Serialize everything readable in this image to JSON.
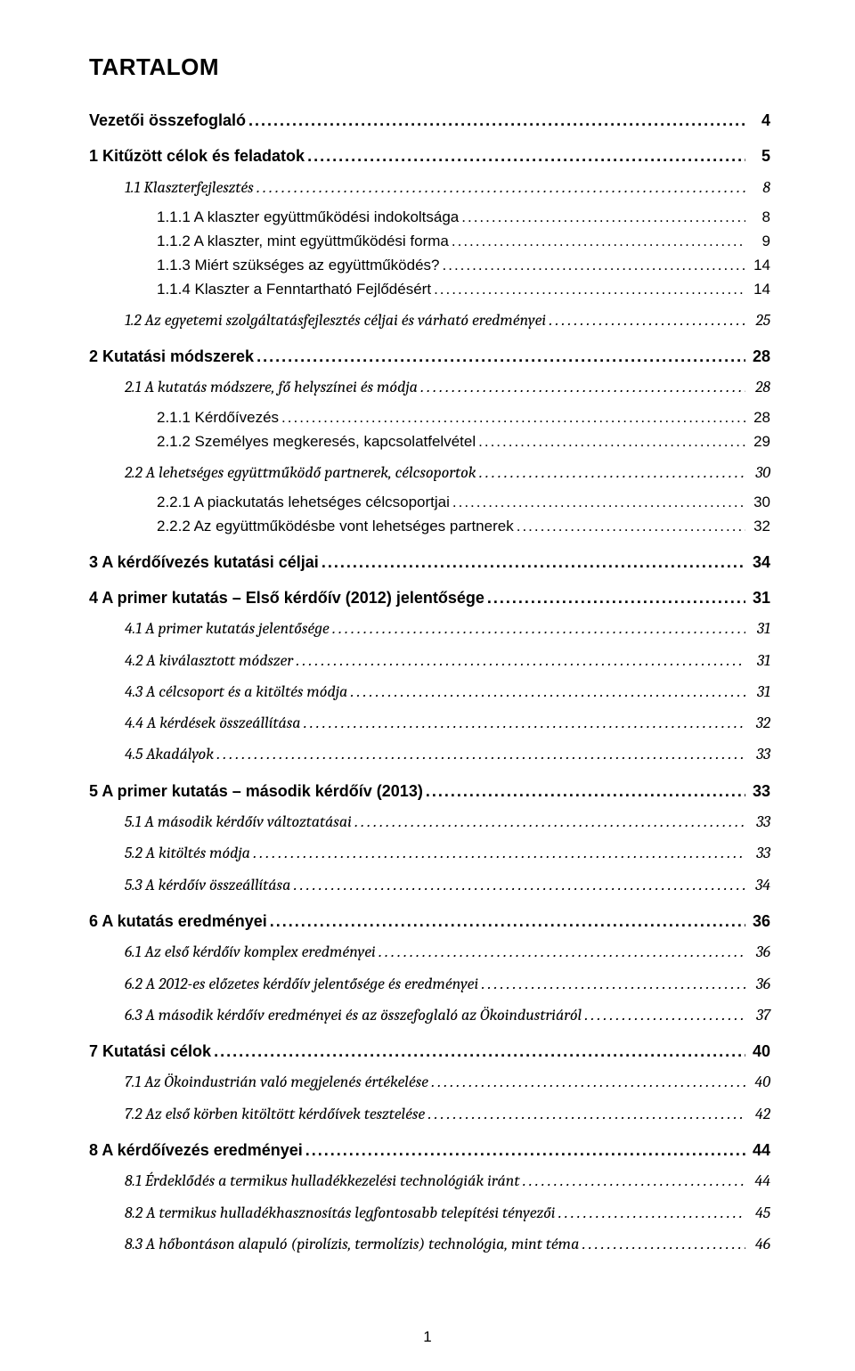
{
  "title": "TARTALOM",
  "page_number": "1",
  "leader_dots": "........................................................................................................................................................................................................",
  "toc": [
    {
      "depth": 0,
      "style": "h1",
      "label": "Vezetői összefoglaló",
      "page": "4",
      "space": "sp-top"
    },
    {
      "depth": 0,
      "style": "h1",
      "label": "1 Kitűzött célok és feladatok",
      "page": "5",
      "space": "sp-top"
    },
    {
      "depth": 1,
      "style": "sub",
      "label": "1.1   Klaszterfejlesztés",
      "page": "8",
      "space": "sp-top-s"
    },
    {
      "depth": 2,
      "style": "subsub",
      "label": "1.1.1  A klaszter együttműködési indokoltsága",
      "page": "8",
      "space": "sp-top-s"
    },
    {
      "depth": 2,
      "style": "subsub",
      "label": "1.1.2  A klaszter, mint együttműködési forma",
      "page": "9",
      "space": ""
    },
    {
      "depth": 2,
      "style": "subsub",
      "label": "1.1.3  Miért szükséges az együttműködés?",
      "page": "14",
      "space": ""
    },
    {
      "depth": 2,
      "style": "subsub",
      "label": "1.1.4  Klaszter a Fenntartható Fejlődésért",
      "page": "14",
      "space": ""
    },
    {
      "depth": 1,
      "style": "sub",
      "label": "1.2   Az egyetemi szolgáltatásfejlesztés céljai és várható eredményei",
      "page": "25",
      "space": "sp-top-s"
    },
    {
      "depth": 0,
      "style": "h1",
      "label": "2 Kutatási módszerek",
      "page": "28",
      "space": "sp-top"
    },
    {
      "depth": 1,
      "style": "sub",
      "label": "2.1   A kutatás módszere, fő helyszínei és módja",
      "page": "28",
      "space": "sp-top-s"
    },
    {
      "depth": 2,
      "style": "subsub",
      "label": "2.1.1  Kérdőívezés",
      "page": "28",
      "space": "sp-top-s"
    },
    {
      "depth": 2,
      "style": "subsub",
      "label": "2.1.2  Személyes megkeresés, kapcsolatfelvétel",
      "page": "29",
      "space": ""
    },
    {
      "depth": 1,
      "style": "sub",
      "label": "2.2   A lehetséges együttműködő partnerek, célcsoportok",
      "page": "30",
      "space": "sp-top-s"
    },
    {
      "depth": 2,
      "style": "subsub",
      "label": "2.2.1  A piackutatás lehetséges célcsoportjai",
      "page": "30",
      "space": "sp-top-s"
    },
    {
      "depth": 2,
      "style": "subsub",
      "label": "2.2.2  Az együttműködésbe vont lehetséges partnerek",
      "page": "32",
      "space": ""
    },
    {
      "depth": 0,
      "style": "h1",
      "label": "3 A kérdőívezés kutatási céljai",
      "page": "34",
      "space": "sp-top"
    },
    {
      "depth": 0,
      "style": "h1",
      "label": "4 A primer kutatás – Első kérdőív (2012) jelentősége",
      "page": "31",
      "space": "sp-top"
    },
    {
      "depth": 1,
      "style": "sub",
      "label": "4.1   A primer kutatás jelentősége",
      "page": "31",
      "space": "sp-top-s"
    },
    {
      "depth": 1,
      "style": "sub",
      "label": "4.2   A kiválasztott módszer",
      "page": "31",
      "space": "sp-top-s"
    },
    {
      "depth": 1,
      "style": "sub",
      "label": "4.3   A célcsoport és a kitöltés módja",
      "page": "31",
      "space": "sp-top-s"
    },
    {
      "depth": 1,
      "style": "sub",
      "label": "4.4   A kérdések összeállítása",
      "page": "32",
      "space": "sp-top-s"
    },
    {
      "depth": 1,
      "style": "sub",
      "label": "4.5   Akadályok",
      "page": "33",
      "space": "sp-top-s"
    },
    {
      "depth": 0,
      "style": "h1",
      "label": "5 A primer kutatás – második kérdőív (2013)",
      "page": "33",
      "space": "sp-top"
    },
    {
      "depth": 1,
      "style": "sub",
      "label": "5.1   A második kérdőív változtatásai",
      "page": "33",
      "space": "sp-top-s"
    },
    {
      "depth": 1,
      "style": "sub",
      "label": "5.2   A kitöltés módja",
      "page": "33",
      "space": "sp-top-s"
    },
    {
      "depth": 1,
      "style": "sub",
      "label": "5.3   A kérdőív összeállítása",
      "page": "34",
      "space": "sp-top-s"
    },
    {
      "depth": 0,
      "style": "h1",
      "label": "6 A kutatás eredményei",
      "page": "36",
      "space": "sp-top"
    },
    {
      "depth": 1,
      "style": "sub",
      "label": "6.1   Az első kérdőív komplex eredményei",
      "page": "36",
      "space": "sp-top-s"
    },
    {
      "depth": 1,
      "style": "sub",
      "label": "6.2   A 2012-es előzetes kérdőív jelentősége és eredményei",
      "page": "36",
      "space": "sp-top-s"
    },
    {
      "depth": 1,
      "style": "sub",
      "label": "6.3   A második kérdőív eredményei és az összefoglaló az Ökoindustriáról",
      "page": "37",
      "space": "sp-top-s"
    },
    {
      "depth": 0,
      "style": "h1",
      "label": "7 Kutatási célok",
      "page": "40",
      "space": "sp-top"
    },
    {
      "depth": 1,
      "style": "sub",
      "label": "7.1   Az Ökoindustrián való megjelenés értékelése",
      "page": "40",
      "space": "sp-top-s"
    },
    {
      "depth": 1,
      "style": "sub",
      "label": "7.2   Az első körben kitöltött kérdőívek tesztelése",
      "page": "42",
      "space": "sp-top-s"
    },
    {
      "depth": 0,
      "style": "h1",
      "label": "8 A kérdőívezés eredményei",
      "page": "44",
      "space": "sp-top"
    },
    {
      "depth": 1,
      "style": "sub",
      "label": "8.1   Érdeklődés a termikus hulladékkezelési technológiák iránt",
      "page": "44",
      "space": "sp-top-s"
    },
    {
      "depth": 1,
      "style": "sub",
      "label": "8.2   A termikus hulladékhasznosítás legfontosabb telepítési tényezői",
      "page": "45",
      "space": "sp-top-s"
    },
    {
      "depth": 1,
      "style": "sub",
      "label": "8.3   A hőbontáson alapuló (pirolízis, termolízis) technológia, mint téma",
      "page": "46",
      "space": "sp-top-s"
    }
  ]
}
